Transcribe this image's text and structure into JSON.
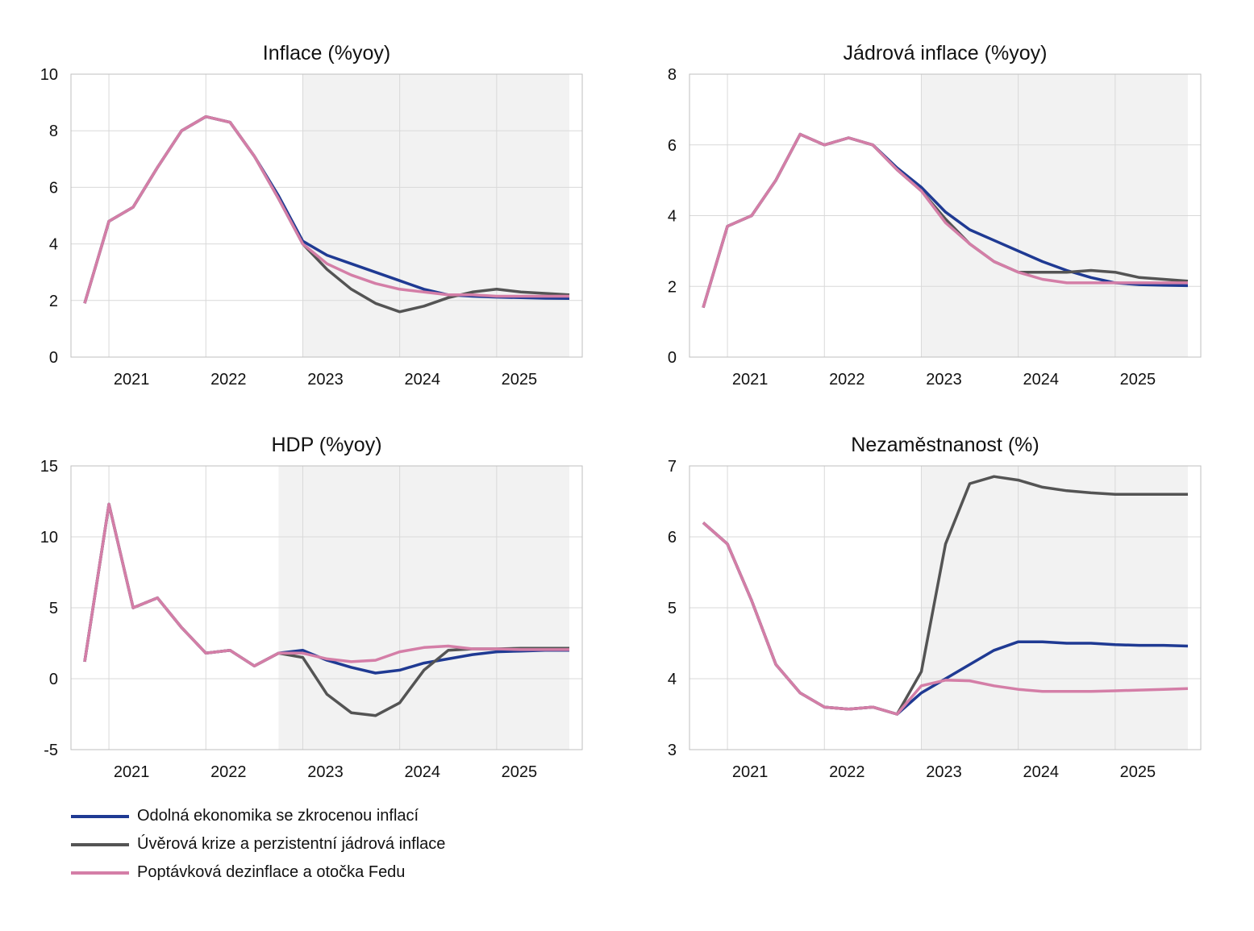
{
  "series_styles": [
    {
      "key": "resilient",
      "color": "#1f3a93"
    },
    {
      "key": "credit",
      "color": "#545454"
    },
    {
      "key": "demand",
      "color": "#d47ea7"
    }
  ],
  "legend": [
    {
      "label": "Odolná ekonomika se zkrocenou inflací",
      "color": "#1f3a93"
    },
    {
      "label": "Úvěrová krize a perzistentní jádrová inflace",
      "color": "#545454"
    },
    {
      "label": "Poptávková dezinflace a otočka Fedu",
      "color": "#d47ea7"
    }
  ],
  "chart_data": [
    {
      "type": "line",
      "title": "Inflace (%yoy)",
      "x": [
        "2020Q4",
        "2021Q1",
        "2021Q2",
        "2021Q3",
        "2021Q4",
        "2022Q1",
        "2022Q2",
        "2022Q3",
        "2022Q4",
        "2023Q1",
        "2023Q2",
        "2023Q3",
        "2023Q4",
        "2024Q1",
        "2024Q2",
        "2024Q3",
        "2024Q4",
        "2025Q1",
        "2025Q2",
        "2025Q3",
        "2025Q4"
      ],
      "x_ticks": [
        "2021",
        "2022",
        "2023",
        "2024",
        "2025"
      ],
      "ylim": [
        0,
        10
      ],
      "yticks": [
        0,
        2,
        4,
        6,
        8,
        10
      ],
      "forecast_shading_from": "2023Q1",
      "series": [
        {
          "key": "resilient",
          "values": [
            1.9,
            4.8,
            5.3,
            6.7,
            8.0,
            8.5,
            8.3,
            7.1,
            5.7,
            4.1,
            3.6,
            3.3,
            3.0,
            2.7,
            2.4,
            2.2,
            2.15,
            2.12,
            2.1,
            2.08,
            2.07
          ]
        },
        {
          "key": "credit",
          "values": [
            1.9,
            4.8,
            5.3,
            6.7,
            8.0,
            8.5,
            8.3,
            7.1,
            5.6,
            4.0,
            3.1,
            2.4,
            1.9,
            1.6,
            1.8,
            2.1,
            2.3,
            2.4,
            2.3,
            2.25,
            2.2
          ]
        },
        {
          "key": "demand",
          "values": [
            1.9,
            4.8,
            5.3,
            6.7,
            8.0,
            8.5,
            8.3,
            7.1,
            5.6,
            4.0,
            3.3,
            2.9,
            2.6,
            2.4,
            2.3,
            2.2,
            2.2,
            2.15,
            2.15,
            2.15,
            2.15
          ]
        }
      ]
    },
    {
      "type": "line",
      "title": "Jádrová inflace (%yoy)",
      "x": [
        "2020Q4",
        "2021Q1",
        "2021Q2",
        "2021Q3",
        "2021Q4",
        "2022Q1",
        "2022Q2",
        "2022Q3",
        "2022Q4",
        "2023Q1",
        "2023Q2",
        "2023Q3",
        "2023Q4",
        "2024Q1",
        "2024Q2",
        "2024Q3",
        "2024Q4",
        "2025Q1",
        "2025Q2",
        "2025Q3",
        "2025Q4"
      ],
      "x_ticks": [
        "2021",
        "2022",
        "2023",
        "2024",
        "2025"
      ],
      "ylim": [
        0,
        8
      ],
      "yticks": [
        0,
        2,
        4,
        6,
        8
      ],
      "forecast_shading_from": "2023Q1",
      "series": [
        {
          "key": "resilient",
          "values": [
            1.4,
            3.7,
            4.0,
            5.0,
            6.3,
            6.0,
            6.2,
            6.0,
            5.35,
            4.8,
            4.1,
            3.6,
            3.3,
            3.0,
            2.7,
            2.45,
            2.25,
            2.1,
            2.05,
            2.03,
            2.02
          ]
        },
        {
          "key": "credit",
          "values": [
            1.4,
            3.7,
            4.0,
            5.0,
            6.3,
            6.0,
            6.2,
            6.0,
            5.3,
            4.7,
            3.9,
            3.2,
            2.7,
            2.4,
            2.4,
            2.4,
            2.45,
            2.4,
            2.25,
            2.2,
            2.15
          ]
        },
        {
          "key": "demand",
          "values": [
            1.4,
            3.7,
            4.0,
            5.0,
            6.3,
            6.0,
            6.2,
            6.0,
            5.3,
            4.7,
            3.8,
            3.2,
            2.7,
            2.4,
            2.2,
            2.1,
            2.1,
            2.1,
            2.1,
            2.1,
            2.1
          ]
        }
      ]
    },
    {
      "type": "line",
      "title": "HDP (%yoy)",
      "x": [
        "2020Q4",
        "2021Q1",
        "2021Q2",
        "2021Q3",
        "2021Q4",
        "2022Q1",
        "2022Q2",
        "2022Q3",
        "2022Q4",
        "2023Q1",
        "2023Q2",
        "2023Q3",
        "2023Q4",
        "2024Q1",
        "2024Q2",
        "2024Q3",
        "2024Q4",
        "2025Q1",
        "2025Q2",
        "2025Q3",
        "2025Q4"
      ],
      "x_ticks": [
        "2021",
        "2022",
        "2023",
        "2024",
        "2025"
      ],
      "ylim": [
        -5,
        15
      ],
      "yticks": [
        -5,
        0,
        5,
        10,
        15
      ],
      "forecast_shading_from": "2022Q4",
      "series": [
        {
          "key": "resilient",
          "values": [
            1.2,
            12.3,
            5.0,
            5.7,
            3.6,
            1.8,
            2.0,
            0.9,
            1.8,
            2.0,
            1.3,
            0.8,
            0.4,
            0.6,
            1.1,
            1.4,
            1.7,
            1.9,
            1.95,
            2.0,
            2.0
          ]
        },
        {
          "key": "credit",
          "values": [
            1.2,
            12.3,
            5.0,
            5.7,
            3.6,
            1.8,
            2.0,
            0.9,
            1.8,
            1.5,
            -1.1,
            -2.4,
            -2.6,
            -1.7,
            0.6,
            2.0,
            2.1,
            2.1,
            2.15,
            2.15,
            2.15
          ]
        },
        {
          "key": "demand",
          "values": [
            1.2,
            12.3,
            5.0,
            5.7,
            3.6,
            1.8,
            2.0,
            0.9,
            1.8,
            1.8,
            1.4,
            1.2,
            1.3,
            1.9,
            2.2,
            2.3,
            2.1,
            2.1,
            2.05,
            2.05,
            2.05
          ]
        }
      ]
    },
    {
      "type": "line",
      "title": "Nezaměstnanost (%)",
      "x": [
        "2020Q4",
        "2021Q1",
        "2021Q2",
        "2021Q3",
        "2021Q4",
        "2022Q1",
        "2022Q2",
        "2022Q3",
        "2022Q4",
        "2023Q1",
        "2023Q2",
        "2023Q3",
        "2023Q4",
        "2024Q1",
        "2024Q2",
        "2024Q3",
        "2024Q4",
        "2025Q1",
        "2025Q2",
        "2025Q3",
        "2025Q4"
      ],
      "x_ticks": [
        "2021",
        "2022",
        "2023",
        "2024",
        "2025"
      ],
      "ylim": [
        3,
        7
      ],
      "yticks": [
        3,
        4,
        5,
        6,
        7
      ],
      "forecast_shading_from": "2023Q1",
      "series": [
        {
          "key": "resilient",
          "values": [
            6.2,
            5.9,
            5.1,
            4.2,
            3.8,
            3.6,
            3.57,
            3.6,
            3.5,
            3.8,
            4.0,
            4.2,
            4.4,
            4.52,
            4.52,
            4.5,
            4.5,
            4.48,
            4.47,
            4.47,
            4.46
          ]
        },
        {
          "key": "credit",
          "values": [
            6.2,
            5.9,
            5.1,
            4.2,
            3.8,
            3.6,
            3.57,
            3.6,
            3.5,
            4.1,
            5.9,
            6.75,
            6.85,
            6.8,
            6.7,
            6.65,
            6.62,
            6.6,
            6.6,
            6.6,
            6.6
          ]
        },
        {
          "key": "demand",
          "values": [
            6.2,
            5.9,
            5.1,
            4.2,
            3.8,
            3.6,
            3.57,
            3.6,
            3.5,
            3.9,
            3.98,
            3.97,
            3.9,
            3.85,
            3.82,
            3.82,
            3.82,
            3.83,
            3.84,
            3.85,
            3.86
          ]
        }
      ]
    }
  ]
}
